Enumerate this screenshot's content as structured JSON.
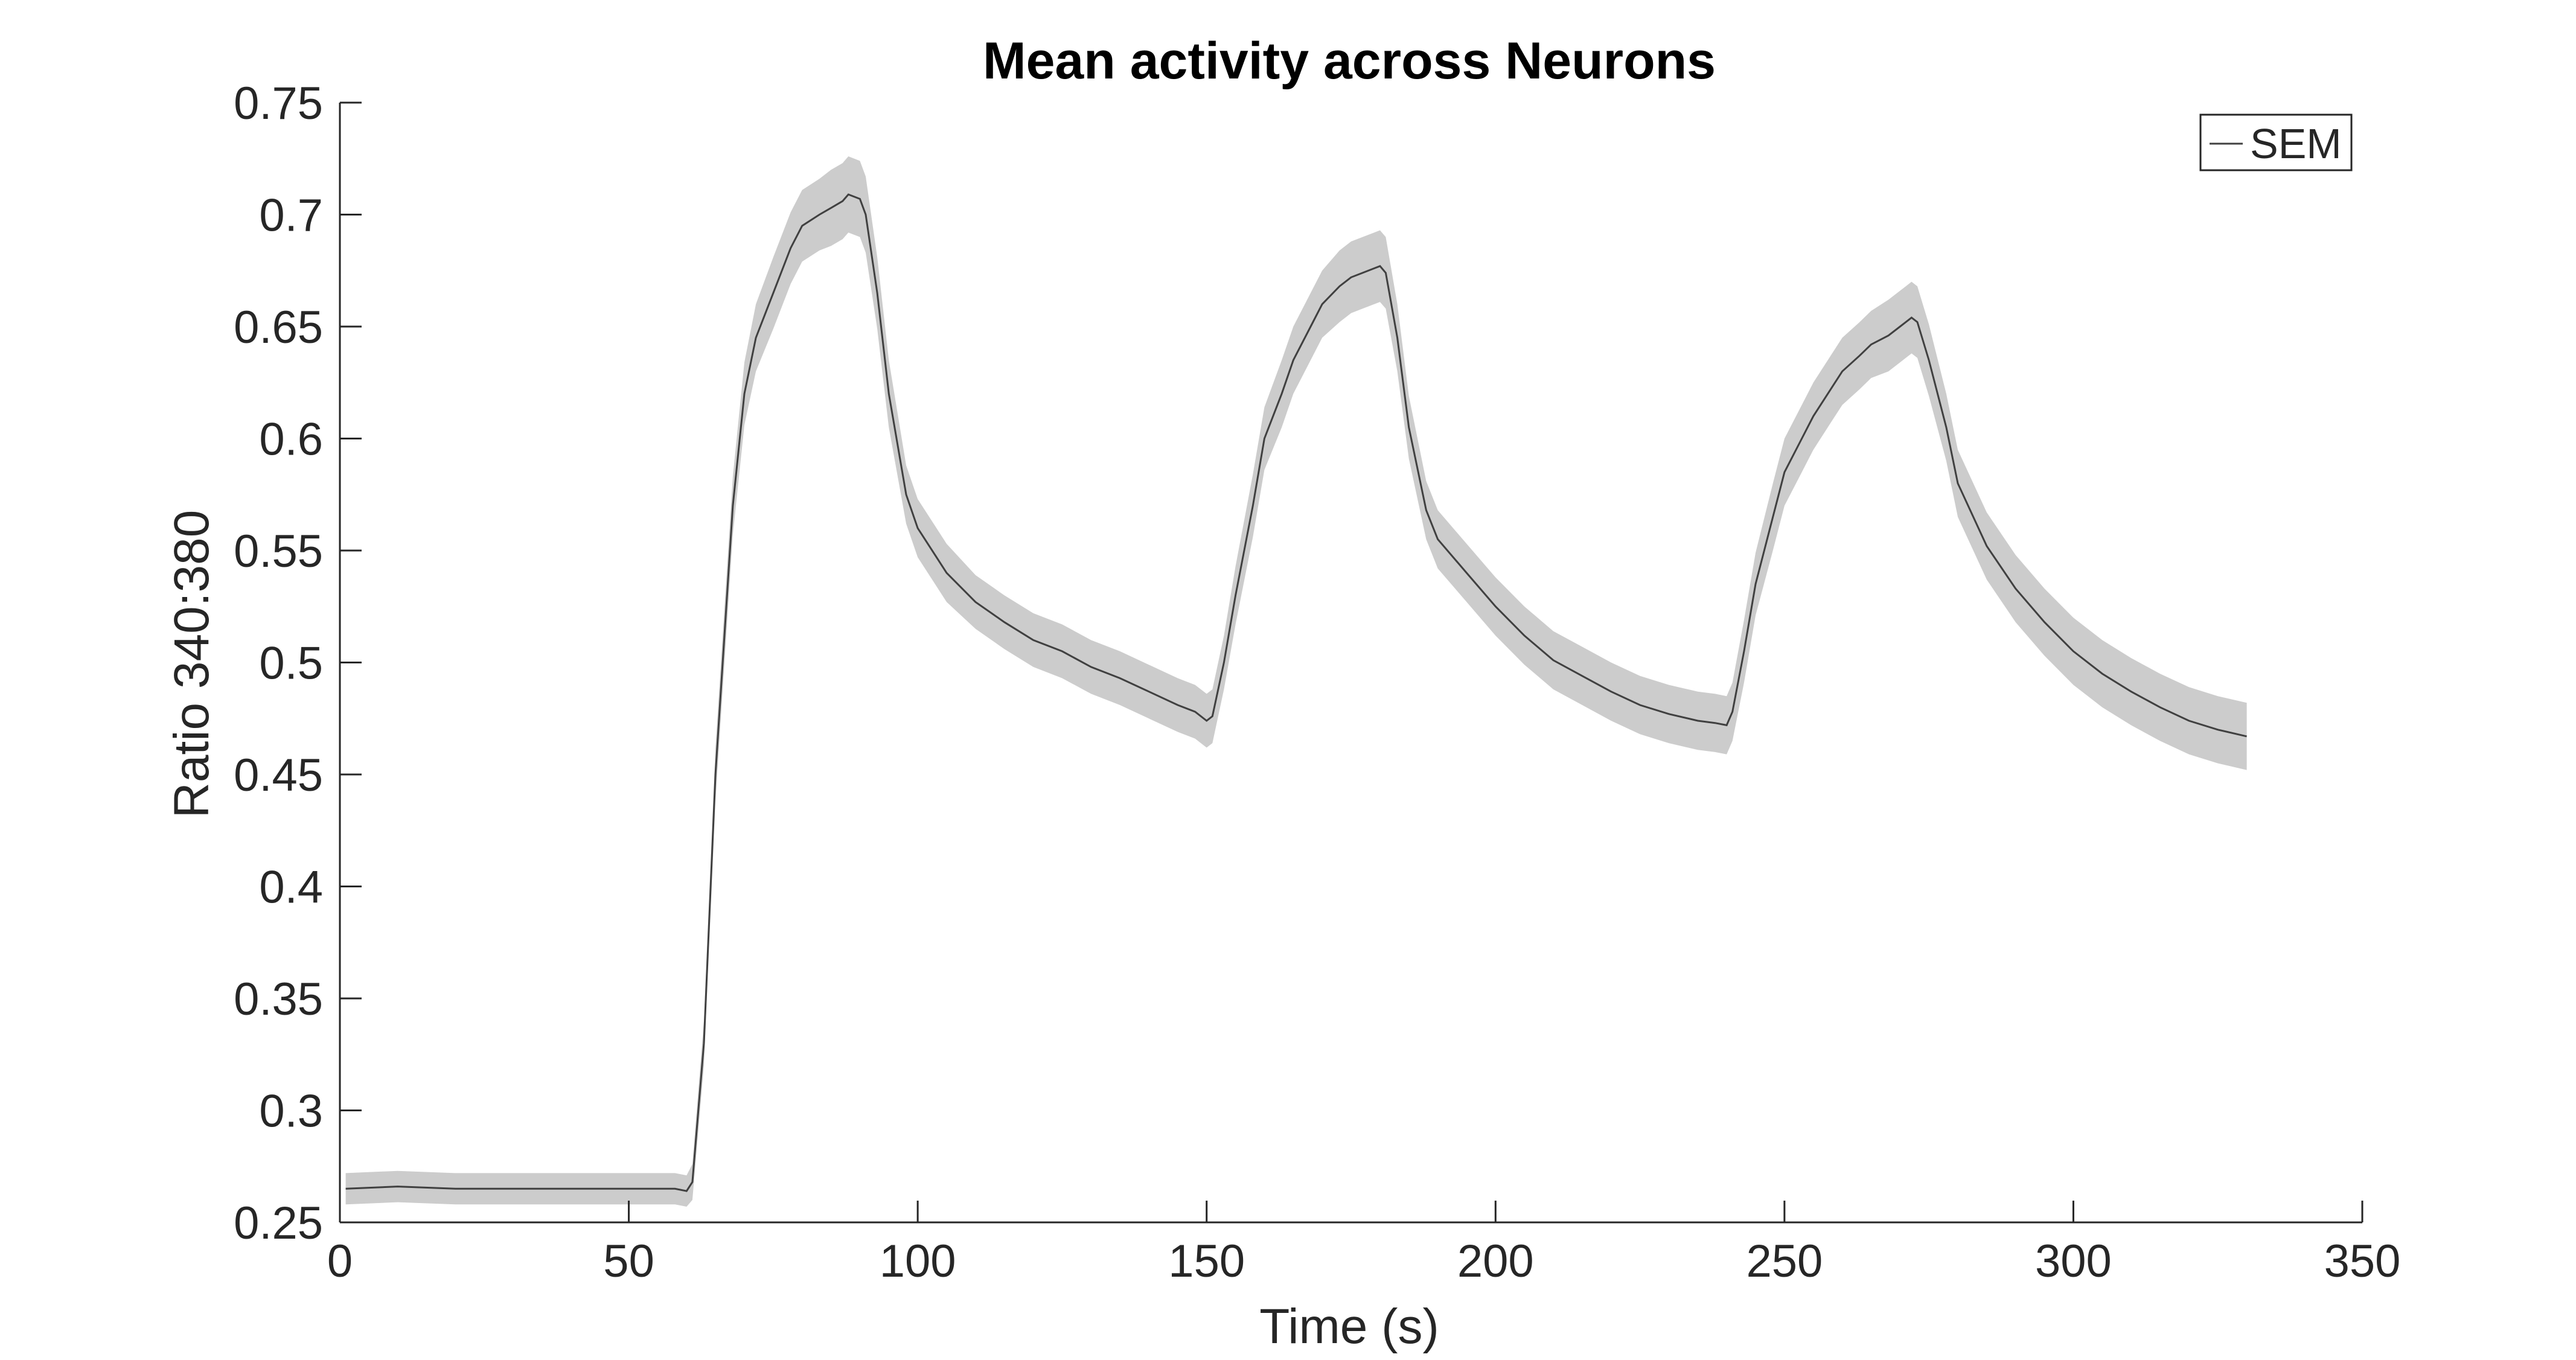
{
  "chart_data": {
    "type": "line",
    "title": "Mean activity across Neurons",
    "xlabel": "Time (s)",
    "ylabel": "Ratio 340:380",
    "xlim": [
      0,
      350
    ],
    "ylim": [
      0.25,
      0.75
    ],
    "xticks": [
      0,
      50,
      100,
      150,
      200,
      250,
      300,
      350
    ],
    "yticks": [
      0.25,
      0.3,
      0.35,
      0.4,
      0.45,
      0.5,
      0.55,
      0.6,
      0.65,
      0.7,
      0.75
    ],
    "xtick_labels": [
      "0",
      "50",
      "100",
      "150",
      "200",
      "250",
      "300",
      "350"
    ],
    "ytick_labels": [
      "0.25",
      "0.3",
      "0.35",
      "0.4",
      "0.45",
      "0.5",
      "0.55",
      "0.6",
      "0.65",
      "0.7",
      "0.75"
    ],
    "grid": false,
    "legend": {
      "position": "top-right",
      "entries": [
        "SEM"
      ]
    },
    "colors": {
      "mean_line": "#404040",
      "sem_band": "#cccccc",
      "axis": "#262626",
      "title": "#000000"
    },
    "series": [
      {
        "name": "SEM",
        "x": [
          1,
          10,
          20,
          30,
          40,
          50,
          58,
          60,
          61,
          63,
          65,
          68,
          70,
          72,
          75,
          78,
          80,
          83,
          85,
          87,
          88,
          90,
          91,
          93,
          95,
          98,
          100,
          103,
          105,
          110,
          115,
          120,
          125,
          130,
          135,
          140,
          145,
          148,
          150,
          151,
          153,
          155,
          158,
          160,
          163,
          165,
          168,
          170,
          173,
          175,
          177,
          179,
          180,
          181,
          183,
          185,
          188,
          190,
          195,
          200,
          205,
          210,
          215,
          220,
          225,
          230,
          235,
          238,
          240,
          241,
          243,
          245,
          248,
          250,
          253,
          255,
          258,
          260,
          263,
          265,
          268,
          270,
          271,
          272,
          273,
          275,
          278,
          280,
          285,
          290,
          295,
          300,
          305,
          310,
          315,
          320,
          325,
          330
        ],
        "mean": [
          0.265,
          0.266,
          0.265,
          0.265,
          0.265,
          0.265,
          0.265,
          0.264,
          0.268,
          0.33,
          0.45,
          0.57,
          0.62,
          0.645,
          0.665,
          0.685,
          0.695,
          0.7,
          0.703,
          0.706,
          0.709,
          0.707,
          0.7,
          0.665,
          0.62,
          0.575,
          0.56,
          0.548,
          0.54,
          0.527,
          0.518,
          0.51,
          0.505,
          0.498,
          0.493,
          0.487,
          0.481,
          0.478,
          0.474,
          0.476,
          0.5,
          0.53,
          0.57,
          0.6,
          0.62,
          0.635,
          0.65,
          0.66,
          0.668,
          0.672,
          0.674,
          0.676,
          0.677,
          0.674,
          0.645,
          0.605,
          0.568,
          0.555,
          0.54,
          0.525,
          0.512,
          0.501,
          0.494,
          0.487,
          0.481,
          0.477,
          0.474,
          0.473,
          0.472,
          0.478,
          0.505,
          0.535,
          0.565,
          0.585,
          0.6,
          0.61,
          0.622,
          0.63,
          0.637,
          0.642,
          0.646,
          0.65,
          0.652,
          0.654,
          0.652,
          0.635,
          0.605,
          0.58,
          0.552,
          0.533,
          0.518,
          0.505,
          0.495,
          0.487,
          0.48,
          0.474,
          0.47,
          0.467
        ],
        "sem": [
          0.007,
          0.007,
          0.007,
          0.007,
          0.007,
          0.007,
          0.007,
          0.007,
          0.008,
          0.01,
          0.012,
          0.013,
          0.014,
          0.015,
          0.016,
          0.016,
          0.016,
          0.016,
          0.017,
          0.017,
          0.017,
          0.017,
          0.017,
          0.016,
          0.015,
          0.013,
          0.013,
          0.013,
          0.013,
          0.012,
          0.012,
          0.012,
          0.012,
          0.012,
          0.012,
          0.012,
          0.012,
          0.012,
          0.012,
          0.012,
          0.012,
          0.013,
          0.014,
          0.014,
          0.015,
          0.015,
          0.015,
          0.015,
          0.016,
          0.016,
          0.016,
          0.016,
          0.016,
          0.016,
          0.015,
          0.014,
          0.013,
          0.013,
          0.013,
          0.013,
          0.013,
          0.013,
          0.013,
          0.013,
          0.013,
          0.013,
          0.013,
          0.013,
          0.013,
          0.013,
          0.014,
          0.014,
          0.015,
          0.015,
          0.015,
          0.015,
          0.015,
          0.015,
          0.015,
          0.015,
          0.016,
          0.016,
          0.016,
          0.016,
          0.016,
          0.016,
          0.015,
          0.015,
          0.015,
          0.015,
          0.015,
          0.015,
          0.015,
          0.015,
          0.015,
          0.015,
          0.015,
          0.015
        ]
      }
    ]
  }
}
